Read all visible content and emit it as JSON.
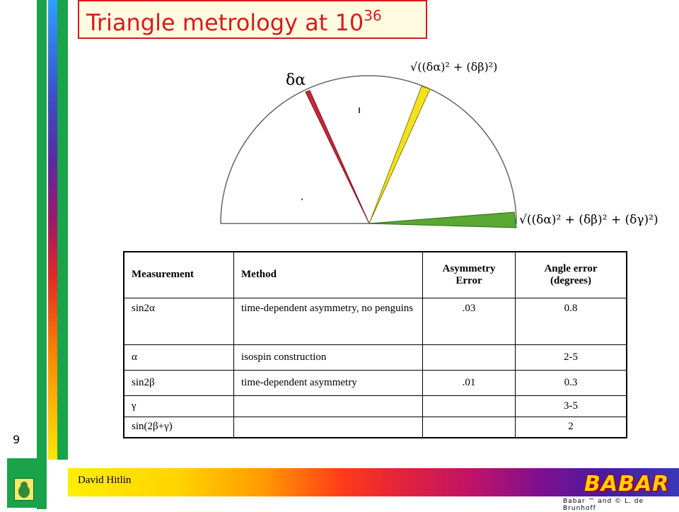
{
  "title": {
    "base": "Triangle metrology at 10",
    "exponent": "36"
  },
  "slide_number": "9",
  "footer": {
    "author": "David Hitlin",
    "logo_text": "BABAR",
    "copyright": "Babar ™ and © L. de Brunhoff"
  },
  "diagram": {
    "label_alpha": "δα",
    "label_beta": "√((δα)² + (δβ)²)",
    "label_gamma": "√((δα)² + (δβ)² + (δγ)²)",
    "colors": {
      "alpha": "#c8283c",
      "beta": "#f2e21e",
      "gamma": "#5aa832"
    }
  },
  "table": {
    "headers": [
      "Measurement",
      "Method",
      "Asymmetry Error",
      "Angle error (degrees)"
    ],
    "rows": [
      {
        "measurement": "sin2α",
        "method": "time-dependent asymmetry, no penguins",
        "asym": ".03",
        "angle": "0.8"
      },
      {
        "measurement": "α",
        "method": "isospin construction",
        "asym": "",
        "angle": "2-5"
      },
      {
        "measurement": "sin2β",
        "method": "time-dependent asymmetry",
        "asym": ".01",
        "angle": "0.3"
      },
      {
        "measurement": "γ",
        "method": "",
        "asym": "",
        "angle": "3-5"
      },
      {
        "measurement": "sin(2β+γ)",
        "method": "",
        "asym": "",
        "angle": "2"
      }
    ]
  }
}
